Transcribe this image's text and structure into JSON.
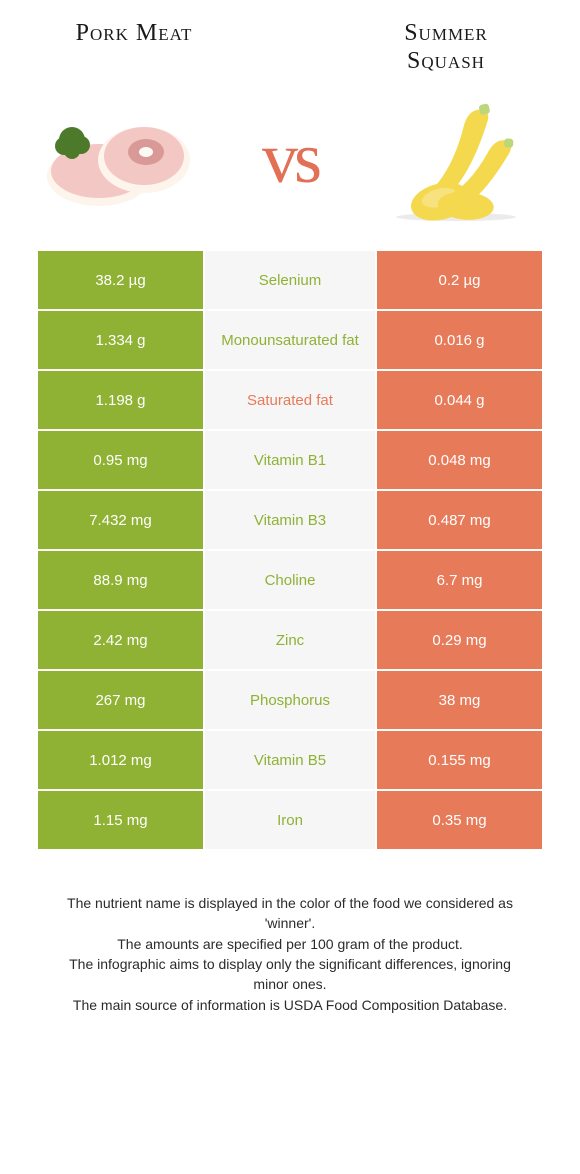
{
  "left": {
    "title": "Pork meat",
    "color": "#8fb234"
  },
  "right": {
    "title": "Summer\nsquash",
    "color": "#e77a59"
  },
  "vs_label": "vs",
  "colors": {
    "left_fill": "#8fb234",
    "right_fill": "#e77a59",
    "mid_bg": "#f6f6f7",
    "row_gap_color": "#ffffff"
  },
  "typography": {
    "title_family": "Georgia, serif",
    "title_size_pt": 18,
    "cell_size_pt": 11,
    "footer_size_pt": 10
  },
  "nutrients": [
    {
      "name": "Selenium",
      "left": "38.2 µg",
      "right": "0.2 µg",
      "winner": "left"
    },
    {
      "name": "Monounsaturated fat",
      "left": "1.334 g",
      "right": "0.016 g",
      "winner": "left"
    },
    {
      "name": "Saturated fat",
      "left": "1.198 g",
      "right": "0.044 g",
      "winner": "right"
    },
    {
      "name": "Vitamin B1",
      "left": "0.95 mg",
      "right": "0.048 mg",
      "winner": "left"
    },
    {
      "name": "Vitamin B3",
      "left": "7.432 mg",
      "right": "0.487 mg",
      "winner": "left"
    },
    {
      "name": "Choline",
      "left": "88.9 mg",
      "right": "6.7 mg",
      "winner": "left"
    },
    {
      "name": "Zinc",
      "left": "2.42 mg",
      "right": "0.29 mg",
      "winner": "left"
    },
    {
      "name": "Phosphorus",
      "left": "267 mg",
      "right": "38 mg",
      "winner": "left"
    },
    {
      "name": "Vitamin B5",
      "left": "1.012 mg",
      "right": "0.155 mg",
      "winner": "left"
    },
    {
      "name": "Iron",
      "left": "1.15 mg",
      "right": "0.35 mg",
      "winner": "left"
    }
  ],
  "footer_lines": [
    "The nutrient name is displayed in the color of the food we considered as 'winner'.",
    "The amounts are specified per 100 gram of the product.",
    "The infographic aims to display only the significant differences, ignoring minor ones.",
    "The main source of information is USDA Food Composition Database."
  ]
}
